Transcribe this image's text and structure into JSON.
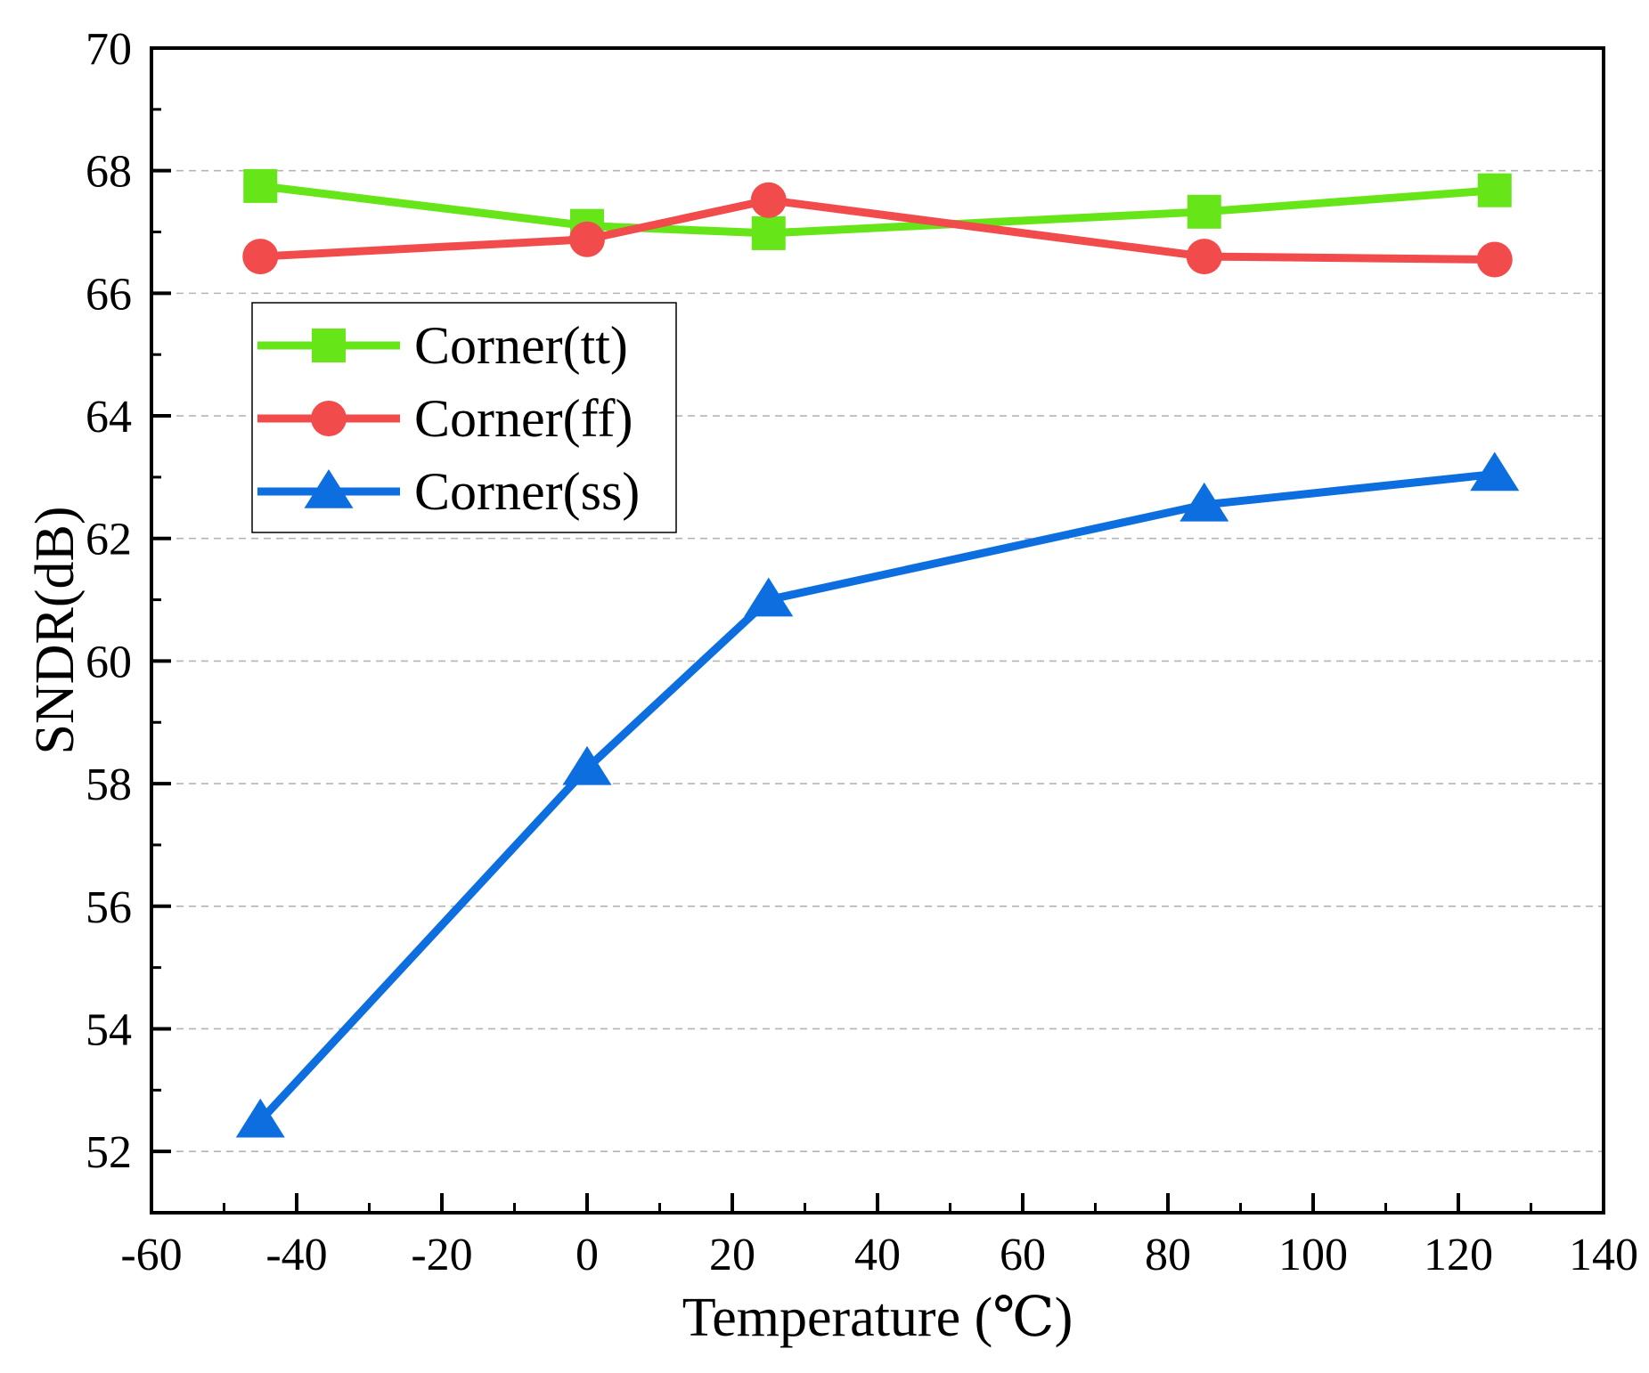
{
  "chart_data": {
    "type": "line",
    "title": "",
    "xlabel": "Temperature (℃)",
    "ylabel": "SNDR(dB)",
    "xlim": [
      -60,
      140
    ],
    "ylim": [
      51,
      70
    ],
    "xticks": [
      -60,
      -40,
      -20,
      0,
      20,
      40,
      60,
      80,
      100,
      120,
      140
    ],
    "yticks": [
      52,
      54,
      56,
      58,
      60,
      62,
      64,
      66,
      68,
      70
    ],
    "grid": "horizontal-dashed",
    "legend_position": "upper-left",
    "series": [
      {
        "name": "Corner(tt)",
        "color": "#66e619",
        "marker": "square",
        "x": [
          -45,
          0,
          25,
          85,
          125
        ],
        "values": [
          67.75,
          67.1,
          66.98,
          67.33,
          67.68
        ]
      },
      {
        "name": "Corner(ff)",
        "color": "#f24b4b",
        "marker": "circle",
        "x": [
          -45,
          0,
          25,
          85,
          125
        ],
        "values": [
          66.6,
          66.88,
          67.52,
          66.6,
          66.55
        ]
      },
      {
        "name": "Corner(ss)",
        "color": "#0d6ee0",
        "marker": "triangle",
        "x": [
          -45,
          0,
          25,
          85,
          125
        ],
        "values": [
          52.5,
          58.25,
          61.0,
          62.55,
          63.05
        ]
      }
    ]
  }
}
